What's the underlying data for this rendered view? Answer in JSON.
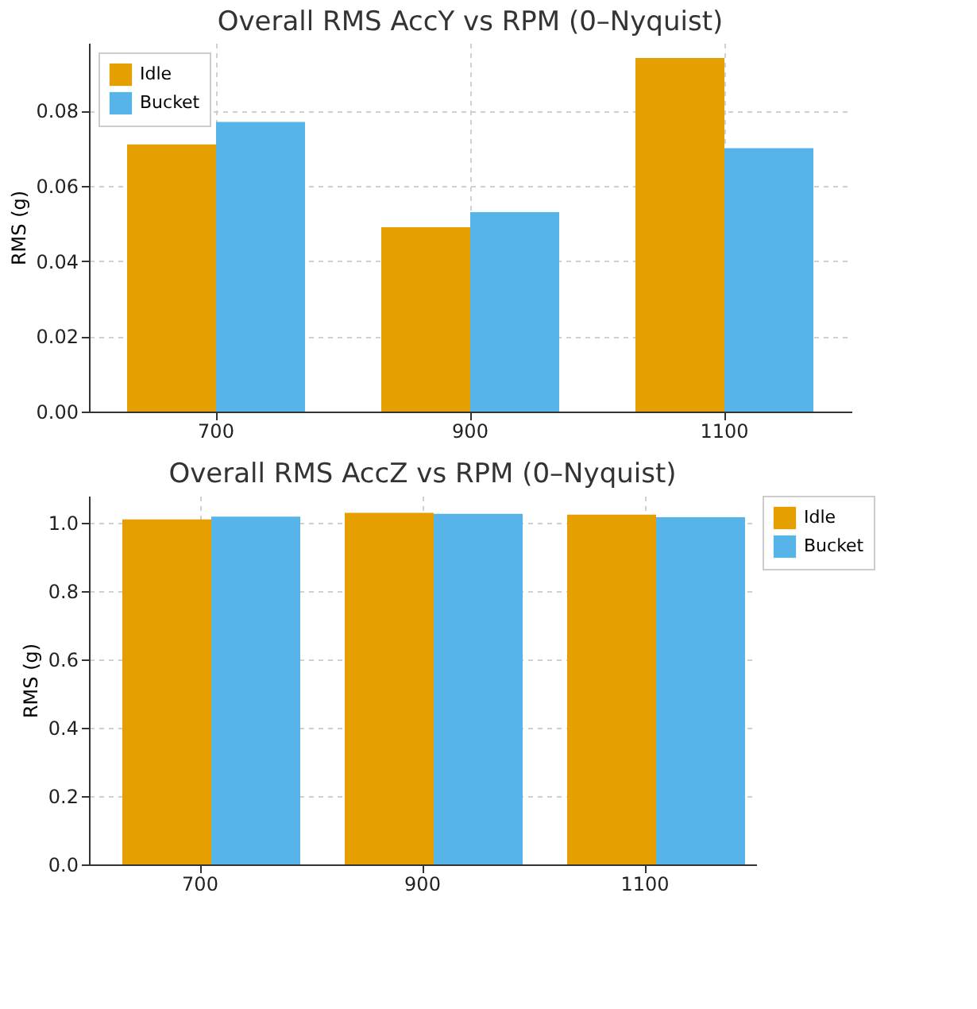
{
  "chart_data": [
    {
      "type": "bar",
      "title": "Overall RMS AccY vs RPM (0–Nyquist)",
      "ylabel": "RMS (g)",
      "categories": [
        "700",
        "900",
        "1100"
      ],
      "series": [
        {
          "name": "Idle",
          "color": "#e69f00",
          "values": [
            0.071,
            0.049,
            0.094
          ]
        },
        {
          "name": "Bucket",
          "color": "#56b4e9",
          "values": [
            0.077,
            0.053,
            0.07
          ]
        }
      ],
      "ylim": [
        0,
        0.098
      ],
      "yticks": [
        {
          "value": 0,
          "label": "0.00"
        },
        {
          "value": 0.02,
          "label": "0.02"
        },
        {
          "value": 0.04,
          "label": "0.04"
        },
        {
          "value": 0.06,
          "label": "0.06"
        },
        {
          "value": 0.08,
          "label": "0.08"
        }
      ],
      "grid": true,
      "legend": "top left"
    },
    {
      "type": "bar",
      "title": "Overall RMS AccZ vs RPM (0–Nyquist)",
      "ylabel": "RMS (g)",
      "categories": [
        "700",
        "900",
        "1100"
      ],
      "series": [
        {
          "name": "Idle",
          "color": "#e69f00",
          "values": [
            1.011,
            1.03,
            1.025
          ]
        },
        {
          "name": "Bucket",
          "color": "#56b4e9",
          "values": [
            1.019,
            1.027,
            1.017
          ]
        }
      ],
      "ylim": [
        0,
        1.08
      ],
      "yticks": [
        {
          "value": 0,
          "label": "0.0"
        },
        {
          "value": 0.2,
          "label": "0.2"
        },
        {
          "value": 0.4,
          "label": "0.4"
        },
        {
          "value": 0.6,
          "label": "0.6"
        },
        {
          "value": 0.8,
          "label": "0.8"
        },
        {
          "value": 1.0,
          "label": "1.0"
        }
      ],
      "grid": true,
      "legend": "right"
    }
  ]
}
